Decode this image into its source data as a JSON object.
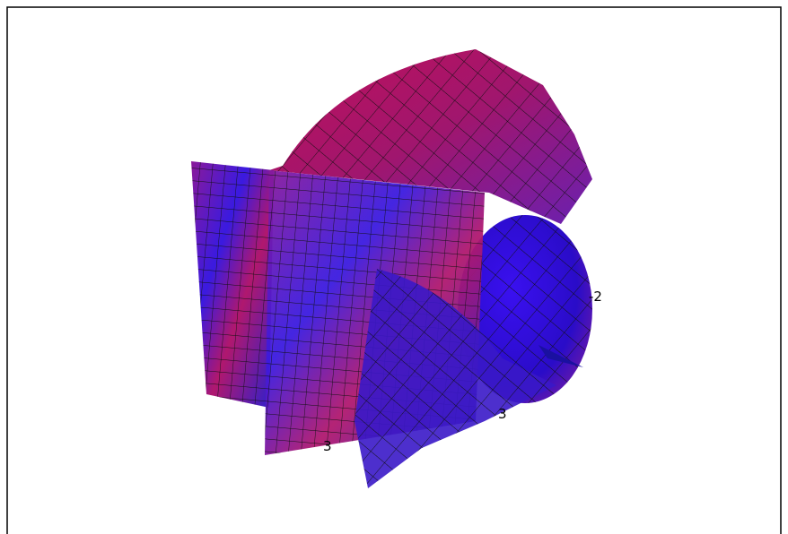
{
  "labels": [
    "-2",
    "3",
    "3"
  ]
}
